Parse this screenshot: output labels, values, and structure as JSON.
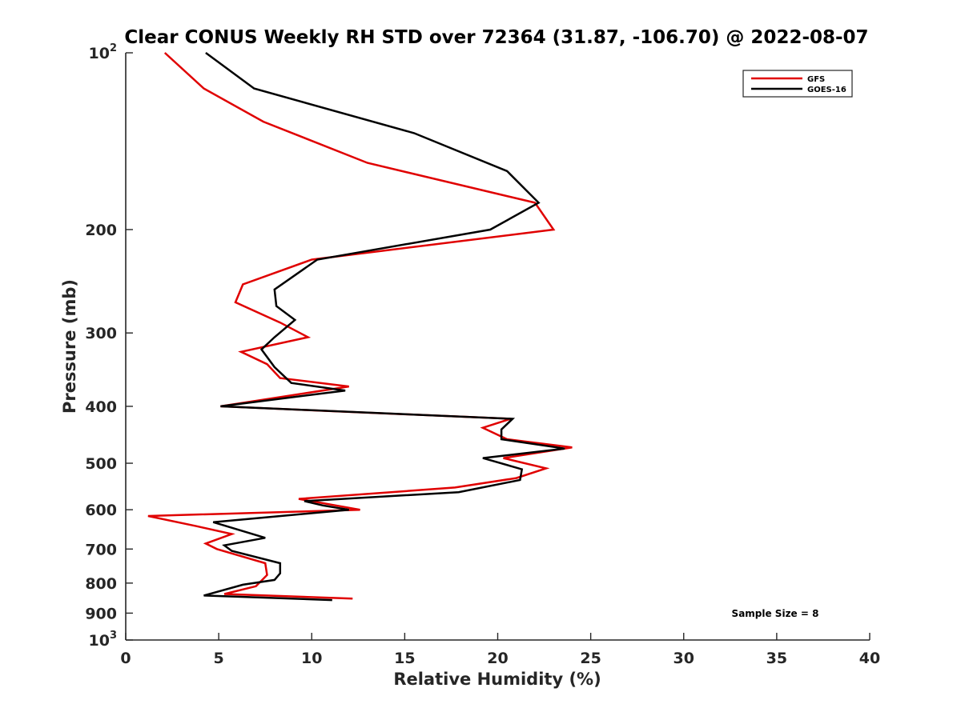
{
  "chart_data": {
    "type": "line",
    "title": "Clear CONUS Weekly RH STD over 72364 (31.87, -106.70) @ 2022-08-07",
    "xlabel": "Relative Humidity (%)",
    "ylabel": "Pressure (mb)",
    "xlim": [
      0,
      40
    ],
    "ylim": [
      100,
      1000
    ],
    "y_scale": "log",
    "y_reversed": true,
    "grid": false,
    "legend_position": "top-right",
    "x_ticks": [
      {
        "value": 0,
        "label": "0"
      },
      {
        "value": 5,
        "label": "5"
      },
      {
        "value": 10,
        "label": "10"
      },
      {
        "value": 15,
        "label": "15"
      },
      {
        "value": 20,
        "label": "20"
      },
      {
        "value": 25,
        "label": "25"
      },
      {
        "value": 30,
        "label": "30"
      },
      {
        "value": 35,
        "label": "35"
      },
      {
        "value": 40,
        "label": "40"
      }
    ],
    "y_ticks": [
      {
        "value": 100,
        "base": "10",
        "exp": "2"
      },
      {
        "value": 200,
        "label": "200"
      },
      {
        "value": 300,
        "label": "300"
      },
      {
        "value": 400,
        "label": "400"
      },
      {
        "value": 500,
        "label": "500"
      },
      {
        "value": 600,
        "label": "600"
      },
      {
        "value": 700,
        "label": "700"
      },
      {
        "value": 800,
        "label": "800"
      },
      {
        "value": 900,
        "label": "900"
      },
      {
        "value": 1000,
        "base": "10",
        "exp": "3"
      }
    ],
    "series": [
      {
        "name": "GFS",
        "color": "#e00000",
        "points": [
          {
            "x": 2.1,
            "y": 100
          },
          {
            "x": 4.2,
            "y": 115
          },
          {
            "x": 7.4,
            "y": 131
          },
          {
            "x": 13.0,
            "y": 154
          },
          {
            "x": 22.0,
            "y": 180
          },
          {
            "x": 23.0,
            "y": 200
          },
          {
            "x": 10.0,
            "y": 225
          },
          {
            "x": 6.3,
            "y": 248
          },
          {
            "x": 5.9,
            "y": 266
          },
          {
            "x": 8.3,
            "y": 288
          },
          {
            "x": 9.8,
            "y": 305
          },
          {
            "x": 6.2,
            "y": 323
          },
          {
            "x": 7.6,
            "y": 339
          },
          {
            "x": 8.3,
            "y": 358
          },
          {
            "x": 12.0,
            "y": 370
          },
          {
            "x": 5.1,
            "y": 400
          },
          {
            "x": 20.7,
            "y": 420
          },
          {
            "x": 19.2,
            "y": 435
          },
          {
            "x": 20.5,
            "y": 455
          },
          {
            "x": 24.0,
            "y": 470
          },
          {
            "x": 20.3,
            "y": 490
          },
          {
            "x": 22.6,
            "y": 510
          },
          {
            "x": 21.0,
            "y": 530
          },
          {
            "x": 17.7,
            "y": 550
          },
          {
            "x": 9.3,
            "y": 575
          },
          {
            "x": 12.6,
            "y": 600
          },
          {
            "x": 1.2,
            "y": 615
          },
          {
            "x": 3.8,
            "y": 640
          },
          {
            "x": 5.7,
            "y": 660
          },
          {
            "x": 4.3,
            "y": 685
          },
          {
            "x": 4.9,
            "y": 700
          },
          {
            "x": 7.5,
            "y": 740
          },
          {
            "x": 7.6,
            "y": 775
          },
          {
            "x": 7.0,
            "y": 810
          },
          {
            "x": 5.3,
            "y": 835
          },
          {
            "x": 12.2,
            "y": 850
          }
        ]
      },
      {
        "name": "GOES-16",
        "color": "#000000",
        "points": [
          {
            "x": 4.3,
            "y": 100
          },
          {
            "x": 6.9,
            "y": 115
          },
          {
            "x": 15.5,
            "y": 137
          },
          {
            "x": 20.5,
            "y": 159
          },
          {
            "x": 22.2,
            "y": 180
          },
          {
            "x": 19.6,
            "y": 200
          },
          {
            "x": 10.3,
            "y": 225
          },
          {
            "x": 8.0,
            "y": 253
          },
          {
            "x": 8.1,
            "y": 270
          },
          {
            "x": 9.1,
            "y": 285
          },
          {
            "x": 8.0,
            "y": 305
          },
          {
            "x": 7.3,
            "y": 320
          },
          {
            "x": 8.0,
            "y": 343
          },
          {
            "x": 8.9,
            "y": 365
          },
          {
            "x": 11.8,
            "y": 376
          },
          {
            "x": 5.1,
            "y": 400
          },
          {
            "x": 20.8,
            "y": 420
          },
          {
            "x": 20.2,
            "y": 438
          },
          {
            "x": 20.2,
            "y": 455
          },
          {
            "x": 23.6,
            "y": 472
          },
          {
            "x": 19.2,
            "y": 490
          },
          {
            "x": 21.3,
            "y": 512
          },
          {
            "x": 21.2,
            "y": 534
          },
          {
            "x": 17.9,
            "y": 560
          },
          {
            "x": 9.6,
            "y": 580
          },
          {
            "x": 10.6,
            "y": 590
          },
          {
            "x": 12.0,
            "y": 600
          },
          {
            "x": 4.7,
            "y": 630
          },
          {
            "x": 7.5,
            "y": 670
          },
          {
            "x": 5.3,
            "y": 690
          },
          {
            "x": 5.7,
            "y": 705
          },
          {
            "x": 8.3,
            "y": 740
          },
          {
            "x": 8.3,
            "y": 770
          },
          {
            "x": 8.0,
            "y": 790
          },
          {
            "x": 6.3,
            "y": 805
          },
          {
            "x": 4.2,
            "y": 840
          },
          {
            "x": 11.1,
            "y": 855
          }
        ]
      }
    ],
    "annotation": "Sample Size = 8"
  }
}
